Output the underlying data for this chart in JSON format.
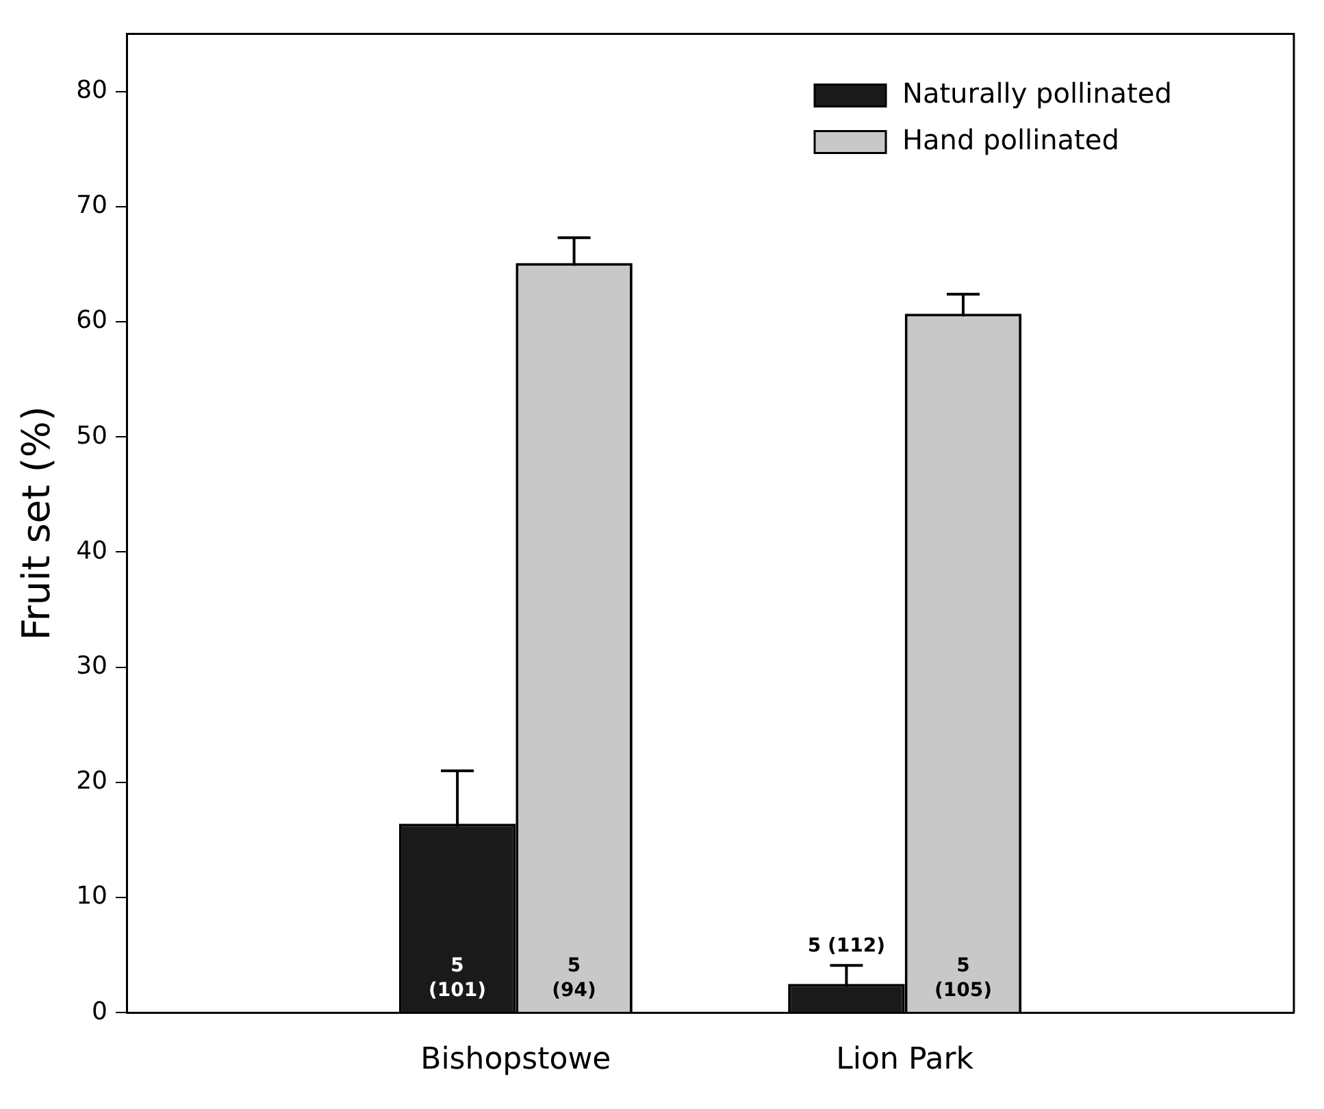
{
  "chart_data": {
    "type": "bar",
    "ylabel": "Fruit set (%)",
    "categories": [
      null,
      "Bishopstowe",
      "Lion Park",
      null
    ],
    "series": [
      {
        "name": "Naturally pollinated",
        "color": "#1a1a1a",
        "values": [
          null,
          16.4,
          2.5,
          null
        ],
        "errors": [
          null,
          4.6,
          1.6,
          null
        ]
      },
      {
        "name": "Hand pollinated",
        "color": "#c8c8c8",
        "values": [
          null,
          65.1,
          60.7,
          null
        ],
        "errors": [
          null,
          2.2,
          1.7,
          null
        ]
      }
    ],
    "annotations": [
      "5 (101)",
      "5 (94)",
      "5 (112)",
      "5 (105)"
    ],
    "ylim": [
      0,
      85
    ],
    "yticks": [
      0,
      10,
      20,
      30,
      40,
      50,
      60,
      70,
      80
    ],
    "grid": false,
    "legend": "top right"
  }
}
